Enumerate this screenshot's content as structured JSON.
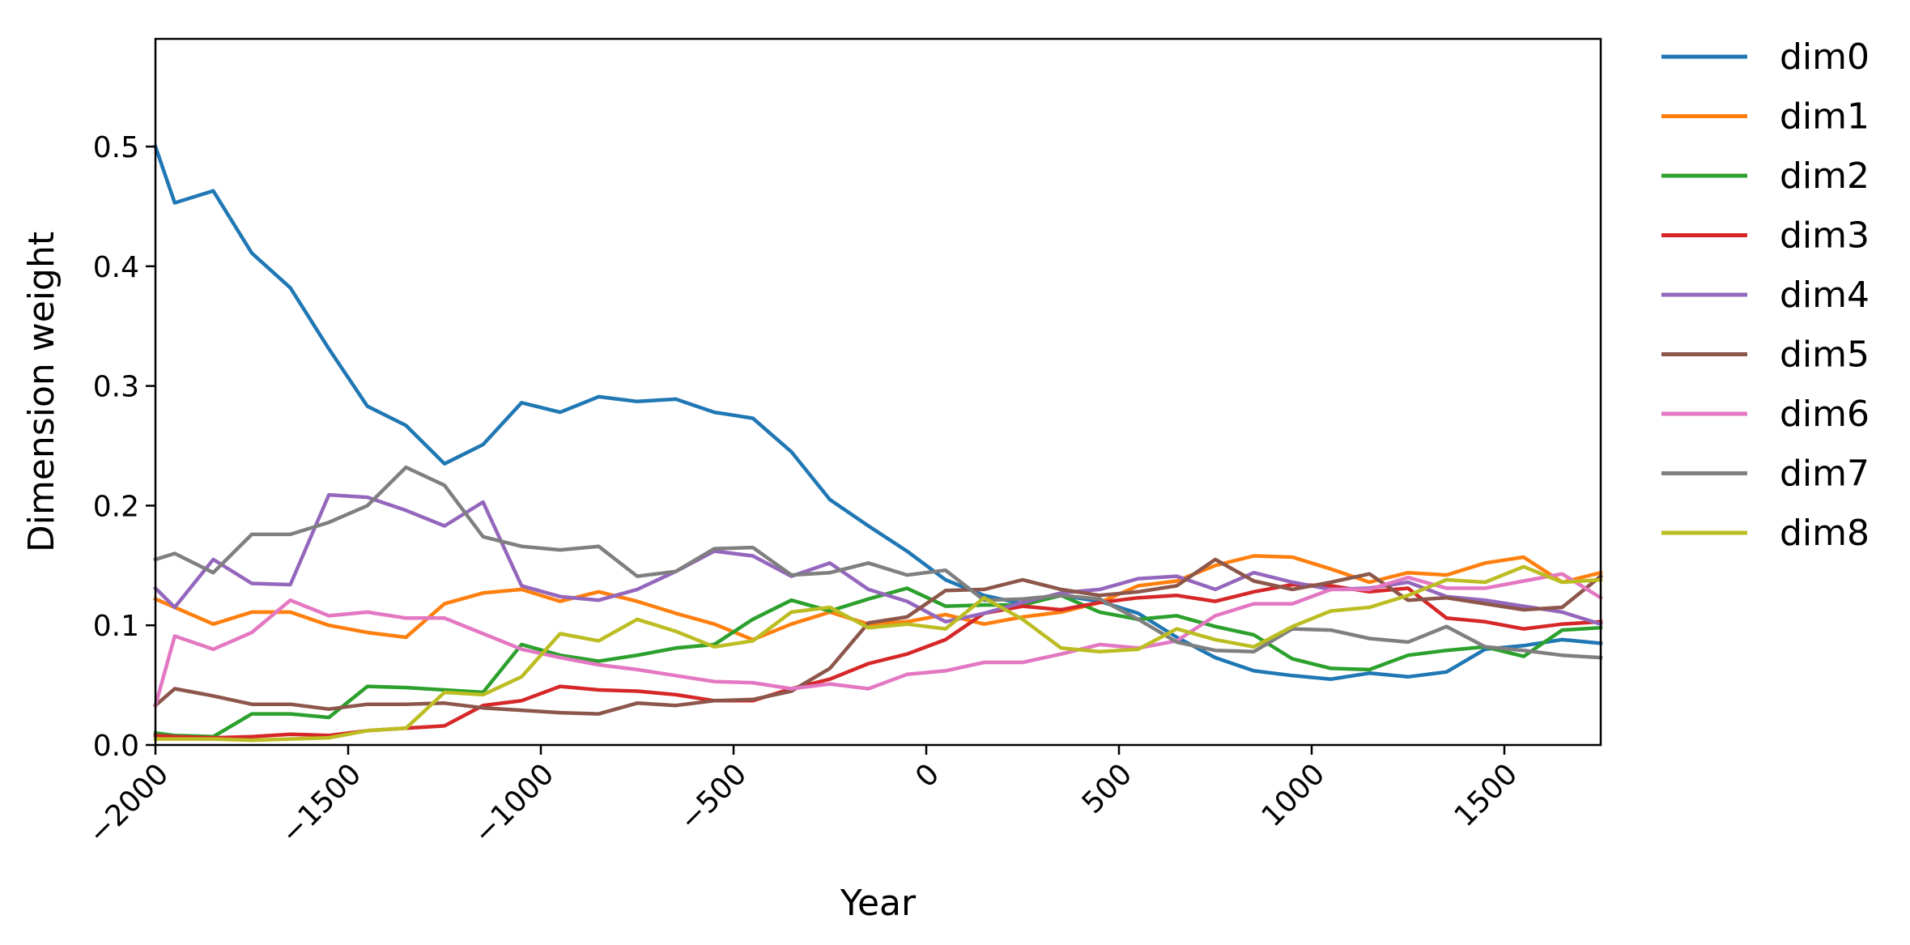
{
  "chart_data": {
    "type": "line",
    "title": "",
    "xlabel": "Year",
    "ylabel": "Dimension weight",
    "xlim": [
      -2000,
      1750
    ],
    "ylim": [
      0.0,
      0.59
    ],
    "xticks": [
      -2000,
      -1500,
      -1000,
      -500,
      0,
      500,
      1000,
      1500
    ],
    "xtick_labels": [
      "−2000",
      "−1500",
      "−1000",
      "−500",
      "0",
      "500",
      "1000",
      "1500"
    ],
    "yticks": [
      0.0,
      0.1,
      0.2,
      0.3,
      0.4,
      0.5
    ],
    "ytick_labels": [
      "0.0",
      "0.1",
      "0.2",
      "0.3",
      "0.4",
      "0.5"
    ],
    "grid": false,
    "legend_position": "outside-right",
    "x": [
      -2000,
      -1950,
      -1850,
      -1750,
      -1650,
      -1550,
      -1450,
      -1350,
      -1250,
      -1150,
      -1050,
      -950,
      -850,
      -750,
      -650,
      -550,
      -450,
      -350,
      -250,
      -150,
      -50,
      50,
      150,
      250,
      350,
      450,
      550,
      650,
      750,
      850,
      950,
      1050,
      1150,
      1250,
      1350,
      1450,
      1550,
      1650,
      1750
    ],
    "series": [
      {
        "name": "dim0",
        "color": "#1f77b4",
        "values": [
          0.5,
          0.453,
          0.463,
          0.411,
          0.382,
          0.331,
          0.283,
          0.267,
          0.235,
          0.251,
          0.286,
          0.278,
          0.291,
          0.287,
          0.289,
          0.278,
          0.273,
          0.245,
          0.205,
          0.183,
          0.162,
          0.138,
          0.125,
          0.118,
          0.125,
          0.12,
          0.11,
          0.09,
          0.073,
          0.062,
          0.058,
          0.055,
          0.06,
          0.057,
          0.061,
          0.08,
          0.083,
          0.088,
          0.085
        ]
      },
      {
        "name": "dim1",
        "color": "#ff7f0e",
        "values": [
          0.122,
          0.115,
          0.101,
          0.111,
          0.111,
          0.1,
          0.094,
          0.09,
          0.118,
          0.127,
          0.13,
          0.12,
          0.128,
          0.12,
          0.11,
          0.101,
          0.088,
          0.101,
          0.111,
          0.101,
          0.103,
          0.109,
          0.101,
          0.107,
          0.111,
          0.119,
          0.133,
          0.137,
          0.15,
          0.158,
          0.157,
          0.147,
          0.136,
          0.144,
          0.142,
          0.152,
          0.157,
          0.136,
          0.144
        ]
      },
      {
        "name": "dim2",
        "color": "#2ca02c",
        "values": [
          0.01,
          0.008,
          0.007,
          0.026,
          0.026,
          0.023,
          0.049,
          0.048,
          0.046,
          0.044,
          0.084,
          0.075,
          0.07,
          0.075,
          0.081,
          0.084,
          0.105,
          0.121,
          0.112,
          0.122,
          0.131,
          0.116,
          0.117,
          0.117,
          0.125,
          0.111,
          0.105,
          0.108,
          0.099,
          0.092,
          0.072,
          0.064,
          0.063,
          0.075,
          0.079,
          0.082,
          0.074,
          0.096,
          0.098
        ]
      },
      {
        "name": "dim3",
        "color": "#d62728",
        "values": [
          0.008,
          0.007,
          0.006,
          0.007,
          0.009,
          0.008,
          0.012,
          0.014,
          0.016,
          0.033,
          0.037,
          0.049,
          0.046,
          0.045,
          0.042,
          0.037,
          0.037,
          0.047,
          0.055,
          0.068,
          0.076,
          0.088,
          0.11,
          0.116,
          0.113,
          0.119,
          0.123,
          0.125,
          0.12,
          0.128,
          0.134,
          0.133,
          0.128,
          0.131,
          0.106,
          0.103,
          0.097,
          0.101,
          0.103
        ]
      },
      {
        "name": "dim4",
        "color": "#9467bd",
        "values": [
          0.131,
          0.115,
          0.155,
          0.135,
          0.134,
          0.209,
          0.207,
          0.196,
          0.183,
          0.203,
          0.133,
          0.124,
          0.121,
          0.13,
          0.145,
          0.162,
          0.158,
          0.141,
          0.152,
          0.13,
          0.12,
          0.103,
          0.11,
          0.119,
          0.127,
          0.13,
          0.139,
          0.141,
          0.13,
          0.144,
          0.136,
          0.13,
          0.131,
          0.136,
          0.124,
          0.121,
          0.116,
          0.111,
          0.101
        ]
      },
      {
        "name": "dim5",
        "color": "#8c564b",
        "values": [
          0.033,
          0.047,
          0.041,
          0.034,
          0.034,
          0.03,
          0.034,
          0.034,
          0.035,
          0.031,
          0.029,
          0.027,
          0.026,
          0.035,
          0.033,
          0.037,
          0.038,
          0.045,
          0.064,
          0.102,
          0.107,
          0.129,
          0.13,
          0.138,
          0.13,
          0.125,
          0.128,
          0.133,
          0.155,
          0.137,
          0.13,
          0.136,
          0.143,
          0.121,
          0.123,
          0.118,
          0.113,
          0.115,
          0.141
        ]
      },
      {
        "name": "dim6",
        "color": "#e377c2",
        "values": [
          0.033,
          0.091,
          0.08,
          0.094,
          0.121,
          0.108,
          0.111,
          0.106,
          0.106,
          0.093,
          0.08,
          0.073,
          0.067,
          0.063,
          0.058,
          0.053,
          0.052,
          0.047,
          0.051,
          0.047,
          0.059,
          0.062,
          0.069,
          0.069,
          0.076,
          0.084,
          0.081,
          0.087,
          0.108,
          0.118,
          0.118,
          0.13,
          0.13,
          0.14,
          0.131,
          0.131,
          0.137,
          0.143,
          0.123
        ]
      },
      {
        "name": "dim7",
        "color": "#7f7f7f",
        "values": [
          0.155,
          0.16,
          0.144,
          0.176,
          0.176,
          0.186,
          0.2,
          0.232,
          0.217,
          0.174,
          0.166,
          0.163,
          0.166,
          0.141,
          0.145,
          0.164,
          0.165,
          0.142,
          0.144,
          0.152,
          0.142,
          0.146,
          0.121,
          0.122,
          0.125,
          0.122,
          0.105,
          0.086,
          0.079,
          0.078,
          0.097,
          0.096,
          0.089,
          0.086,
          0.099,
          0.082,
          0.079,
          0.075,
          0.073
        ]
      },
      {
        "name": "dim8",
        "color": "#bcbd22",
        "values": [
          0.005,
          0.005,
          0.005,
          0.004,
          0.005,
          0.006,
          0.012,
          0.014,
          0.044,
          0.042,
          0.057,
          0.093,
          0.087,
          0.105,
          0.095,
          0.082,
          0.087,
          0.111,
          0.115,
          0.098,
          0.101,
          0.097,
          0.123,
          0.105,
          0.081,
          0.078,
          0.08,
          0.097,
          0.088,
          0.082,
          0.099,
          0.112,
          0.115,
          0.125,
          0.138,
          0.136,
          0.149,
          0.136,
          0.138
        ]
      }
    ]
  }
}
